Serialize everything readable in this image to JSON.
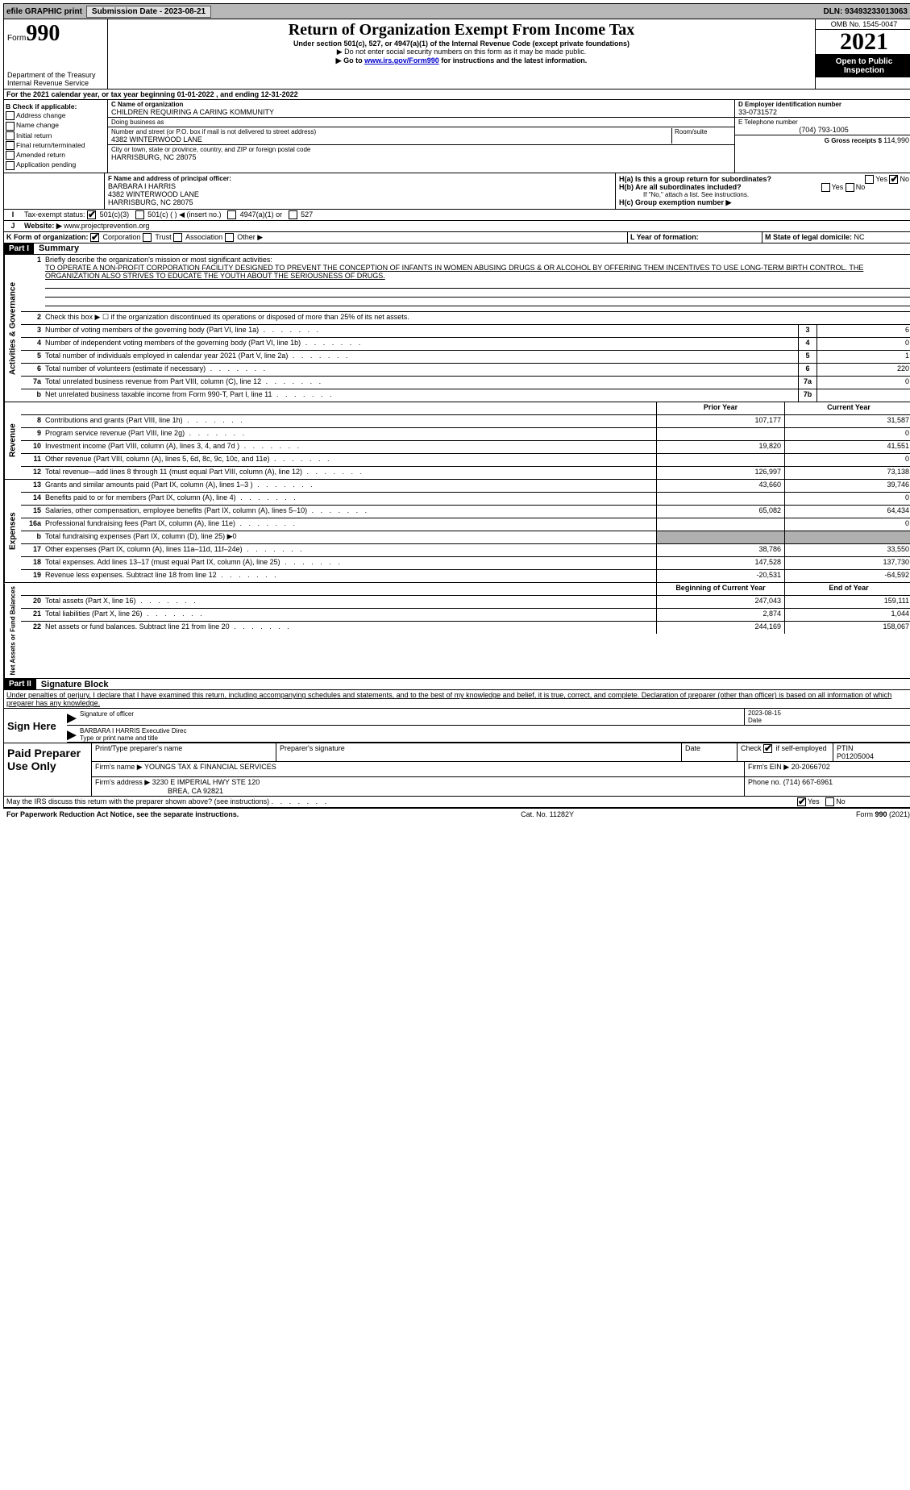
{
  "topbar": {
    "efile": "efile GRAPHIC print",
    "submission_label": "Submission Date - 2023-08-21",
    "dln": "DLN: 93493233013063"
  },
  "header": {
    "form_label": "Form",
    "form_number": "990",
    "title": "Return of Organization Exempt From Income Tax",
    "subtitle": "Under section 501(c), 527, or 4947(a)(1) of the Internal Revenue Code (except private foundations)",
    "note1": "▶ Do not enter social security numbers on this form as it may be made public.",
    "note2_pre": "▶ Go to ",
    "note2_link": "www.irs.gov/Form990",
    "note2_post": " for instructions and the latest information.",
    "dept": "Department of the Treasury",
    "irs": "Internal Revenue Service",
    "omb": "OMB No. 1545-0047",
    "year": "2021",
    "open": "Open to Public Inspection"
  },
  "lineA": "For the 2021 calendar year, or tax year beginning 01-01-2022   , and ending 12-31-2022",
  "boxB": {
    "title": "B Check if applicable:",
    "items": [
      "Address change",
      "Name change",
      "Initial return",
      "Final return/terminated",
      "Amended return",
      "Application pending"
    ]
  },
  "boxC": {
    "name_label": "C Name of organization",
    "name": "CHILDREN REQUIRING A CARING KOMMUNITY",
    "dba_label": "Doing business as",
    "dba": "",
    "addr_label": "Number and street (or P.O. box if mail is not delivered to street address)",
    "room_label": "Room/suite",
    "addr": "4382 WINTERWOOD LANE",
    "city_label": "City or town, state or province, country, and ZIP or foreign postal code",
    "city": "HARRISBURG, NC  28075"
  },
  "boxD": {
    "label": "D Employer identification number",
    "val": "33-0731572"
  },
  "boxE": {
    "label": "E Telephone number",
    "val": "(704) 793-1005"
  },
  "boxG": {
    "label": "G Gross receipts $ ",
    "val": "114,990"
  },
  "boxF": {
    "label": "F  Name and address of principal officer:",
    "name": "BARBARA I HARRIS",
    "addr1": "4382 WINTERWOOD LANE",
    "addr2": "HARRISBURG, NC  28075"
  },
  "boxH": {
    "a": "H(a)  Is this a group return for subordinates?",
    "b": "H(b)  Are all subordinates included?",
    "b_note": "If \"No,\" attach a list. See instructions.",
    "c": "H(c)  Group exemption number ▶"
  },
  "boxI": {
    "label": "Tax-exempt status:",
    "opts": [
      "501(c)(3)",
      "501(c) (  ) ◀ (insert no.)",
      "4947(a)(1) or",
      "527"
    ]
  },
  "boxJ": {
    "label": "Website: ▶",
    "val": "www.projectprevention.org"
  },
  "boxK": {
    "label": "K Form of organization:",
    "opts": [
      "Corporation",
      "Trust",
      "Association",
      "Other ▶"
    ]
  },
  "boxL": {
    "label": "L Year of formation:",
    "val": ""
  },
  "boxM": {
    "label": "M State of legal domicile: ",
    "val": "NC"
  },
  "part1": {
    "tag": "Part I",
    "title": "Summary",
    "mission_label": "Briefly describe the organization's mission or most significant activities:",
    "mission": "TO OPERATE A NON-PROFIT CORPORATION FACILITY DESIGNED TO PREVENT THE CONCEPTION OF INFANTS IN WOMEN ABUSING DRUGS & OR ALCOHOL BY OFFERING THEM INCENTIVES TO USE LONG-TERM BIRTH CONTROL. THE ORGANIZATION ALSO STRIVES TO EDUCATE THE YOUTH ABOUT THE SERIOUSNESS OF DRUGS.",
    "line2": "Check this box ▶ ☐  if the organization discontinued its operations or disposed of more than 25% of its net assets.",
    "govRows": [
      {
        "n": "3",
        "t": "Number of voting members of the governing body (Part VI, line 1a)",
        "b": "3",
        "v": "6"
      },
      {
        "n": "4",
        "t": "Number of independent voting members of the governing body (Part VI, line 1b)",
        "b": "4",
        "v": "0"
      },
      {
        "n": "5",
        "t": "Total number of individuals employed in calendar year 2021 (Part V, line 2a)",
        "b": "5",
        "v": "1"
      },
      {
        "n": "6",
        "t": "Total number of volunteers (estimate if necessary)",
        "b": "6",
        "v": "220"
      },
      {
        "n": "7a",
        "t": "Total unrelated business revenue from Part VIII, column (C), line 12",
        "b": "7a",
        "v": "0"
      },
      {
        "n": "b",
        "t": "Net unrelated business taxable income from Form 990-T, Part I, line 11",
        "b": "7b",
        "v": ""
      }
    ],
    "colHeads": {
      "prior": "Prior Year",
      "current": "Current Year"
    },
    "revRows": [
      {
        "n": "8",
        "t": "Contributions and grants (Part VIII, line 1h)",
        "p": "107,177",
        "c": "31,587"
      },
      {
        "n": "9",
        "t": "Program service revenue (Part VIII, line 2g)",
        "p": "",
        "c": "0"
      },
      {
        "n": "10",
        "t": "Investment income (Part VIII, column (A), lines 3, 4, and 7d )",
        "p": "19,820",
        "c": "41,551"
      },
      {
        "n": "11",
        "t": "Other revenue (Part VIII, column (A), lines 5, 6d, 8c, 9c, 10c, and 11e)",
        "p": "",
        "c": "0"
      },
      {
        "n": "12",
        "t": "Total revenue—add lines 8 through 11 (must equal Part VIII, column (A), line 12)",
        "p": "126,997",
        "c": "73,138"
      }
    ],
    "expRows": [
      {
        "n": "13",
        "t": "Grants and similar amounts paid (Part IX, column (A), lines 1–3 )",
        "p": "43,660",
        "c": "39,746"
      },
      {
        "n": "14",
        "t": "Benefits paid to or for members (Part IX, column (A), line 4)",
        "p": "",
        "c": "0"
      },
      {
        "n": "15",
        "t": "Salaries, other compensation, employee benefits (Part IX, column (A), lines 5–10)",
        "p": "65,082",
        "c": "64,434"
      },
      {
        "n": "16a",
        "t": "Professional fundraising fees (Part IX, column (A), line 11e)",
        "p": "",
        "c": "0"
      },
      {
        "n": "b",
        "t": "Total fundraising expenses (Part IX, column (D), line 25) ▶0",
        "p": "grey",
        "c": "grey"
      },
      {
        "n": "17",
        "t": "Other expenses (Part IX, column (A), lines 11a–11d, 11f–24e)",
        "p": "38,786",
        "c": "33,550"
      },
      {
        "n": "18",
        "t": "Total expenses. Add lines 13–17 (must equal Part IX, column (A), line 25)",
        "p": "147,528",
        "c": "137,730"
      },
      {
        "n": "19",
        "t": "Revenue less expenses. Subtract line 18 from line 12",
        "p": "-20,531",
        "c": "-64,592"
      }
    ],
    "netHeads": {
      "begin": "Beginning of Current Year",
      "end": "End of Year"
    },
    "netRows": [
      {
        "n": "20",
        "t": "Total assets (Part X, line 16)",
        "p": "247,043",
        "c": "159,111"
      },
      {
        "n": "21",
        "t": "Total liabilities (Part X, line 26)",
        "p": "2,874",
        "c": "1,044"
      },
      {
        "n": "22",
        "t": "Net assets or fund balances. Subtract line 21 from line 20",
        "p": "244,169",
        "c": "158,067"
      }
    ],
    "vlab_gov": "Activities & Governance",
    "vlab_rev": "Revenue",
    "vlab_exp": "Expenses",
    "vlab_net": "Net Assets or Fund Balances"
  },
  "part2": {
    "tag": "Part II",
    "title": "Signature Block",
    "decl": "Under penalties of perjury, I declare that I have examined this return, including accompanying schedules and statements, and to the best of my knowledge and belief, it is true, correct, and complete. Declaration of preparer (other than officer) is based on all information of which preparer has any knowledge."
  },
  "sign": {
    "here": "Sign Here",
    "sig_label": "Signature of officer",
    "date_label": "Date",
    "date": "2023-08-15",
    "name": "BARBARA I HARRIS Executive Direc",
    "name_label": "Type or print name and title"
  },
  "paid": {
    "title": "Paid Preparer Use Only",
    "h1": "Print/Type preparer's name",
    "h2": "Preparer's signature",
    "h3": "Date",
    "h4_pre": "Check",
    "h4_post": "if self-employed",
    "h5": "PTIN",
    "ptin": "P01205004",
    "firm_label": "Firm's name    ▶",
    "firm": "YOUNGS TAX & FINANCIAL SERVICES",
    "ein_label": "Firm's EIN ▶",
    "ein": "20-2066702",
    "addr_label": "Firm's address ▶",
    "addr1": "3230 E IMPERIAL HWY STE 120",
    "addr2": "BREA, CA  92821",
    "phone_label": "Phone no.",
    "phone": "(714) 667-6961"
  },
  "discuss": "May the IRS discuss this return with the preparer shown above? (see instructions)",
  "footer": {
    "left": "For Paperwork Reduction Act Notice, see the separate instructions.",
    "mid": "Cat. No. 11282Y",
    "right_pre": "Form ",
    "right_bold": "990",
    "right_post": " (2021)"
  }
}
